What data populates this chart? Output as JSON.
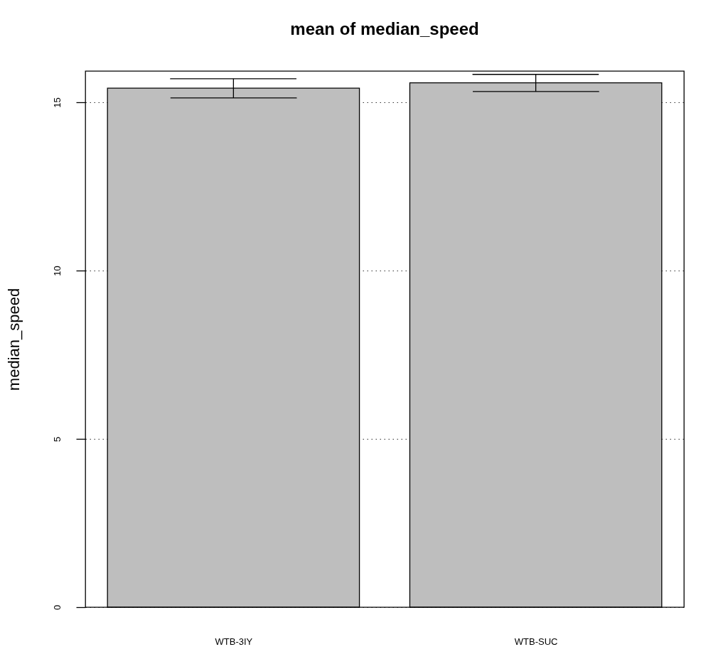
{
  "chart_data": {
    "type": "bar",
    "title": "mean of  median_speed",
    "ylabel": "median_speed",
    "categories": [
      "WTB-3IY",
      "WTB-SUC"
    ],
    "values": [
      15.42,
      15.58
    ],
    "color": "#bebebe",
    "errors": [
      [
        15.13,
        15.7
      ],
      [
        15.32,
        15.83
      ]
    ],
    "ylim": [
      0,
      15.93
    ],
    "yticks": [
      0,
      5,
      10,
      15
    ],
    "grid": "y"
  }
}
